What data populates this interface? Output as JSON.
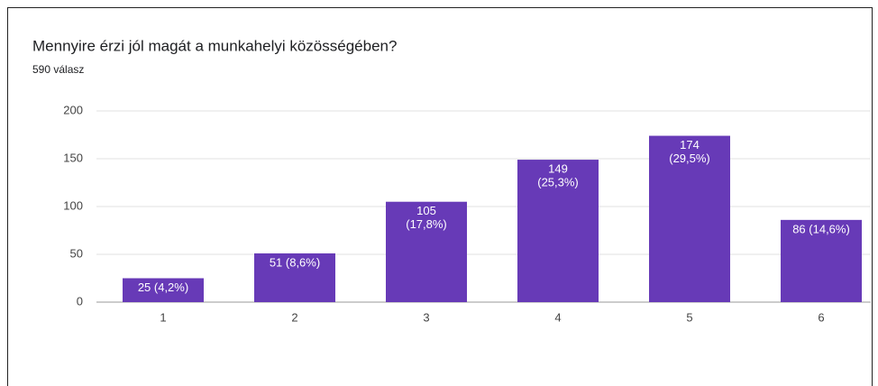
{
  "chart_data": {
    "type": "bar",
    "title": "Mennyire érzi jól magát a munkahelyi közösségében?",
    "subtitle": "590 válasz",
    "categories": [
      "1",
      "2",
      "3",
      "4",
      "5",
      "6"
    ],
    "values": [
      25,
      51,
      105,
      149,
      174,
      86
    ],
    "value_labels": [
      [
        "25 (4,2%)"
      ],
      [
        "51 (8,6%)"
      ],
      [
        "105",
        "(17,8%)"
      ],
      [
        "149",
        "(25,3%)"
      ],
      [
        "174",
        "(29,5%)"
      ],
      [
        "86 (14,6%)"
      ]
    ],
    "color": "#673ab7",
    "ylim": [
      0,
      200
    ],
    "yticks": [
      0,
      50,
      100,
      150,
      200
    ],
    "grid": true
  }
}
